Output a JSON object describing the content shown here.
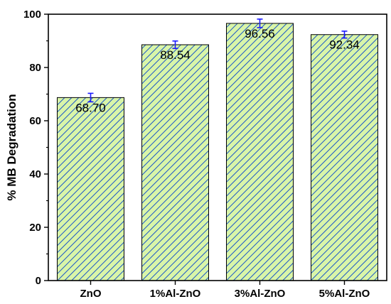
{
  "chart_data": {
    "type": "bar",
    "title": "",
    "xlabel": "",
    "ylabel": "% MB Degradation",
    "categories": [
      "ZnO",
      "1%Al-ZnO",
      "3%Al-ZnO",
      "5%Al-ZnO"
    ],
    "values": [
      68.7,
      88.54,
      96.56,
      92.34
    ],
    "value_labels": [
      "68.70",
      "88.54",
      "96.56",
      "92.34"
    ],
    "error": [
      1.6,
      1.4,
      1.6,
      1.3
    ],
    "ylim": [
      0,
      100
    ],
    "yticks": [
      0,
      20,
      40,
      60,
      80,
      100
    ],
    "ytick_labels": [
      "0",
      "20",
      "40",
      "60",
      "80",
      "100"
    ],
    "grid": false,
    "legend": false,
    "colors": {
      "bar_fill": "#d9f5a8",
      "hatch": "#1a56c8",
      "error_bar": "#1a1aff",
      "axis": "#000000"
    }
  }
}
